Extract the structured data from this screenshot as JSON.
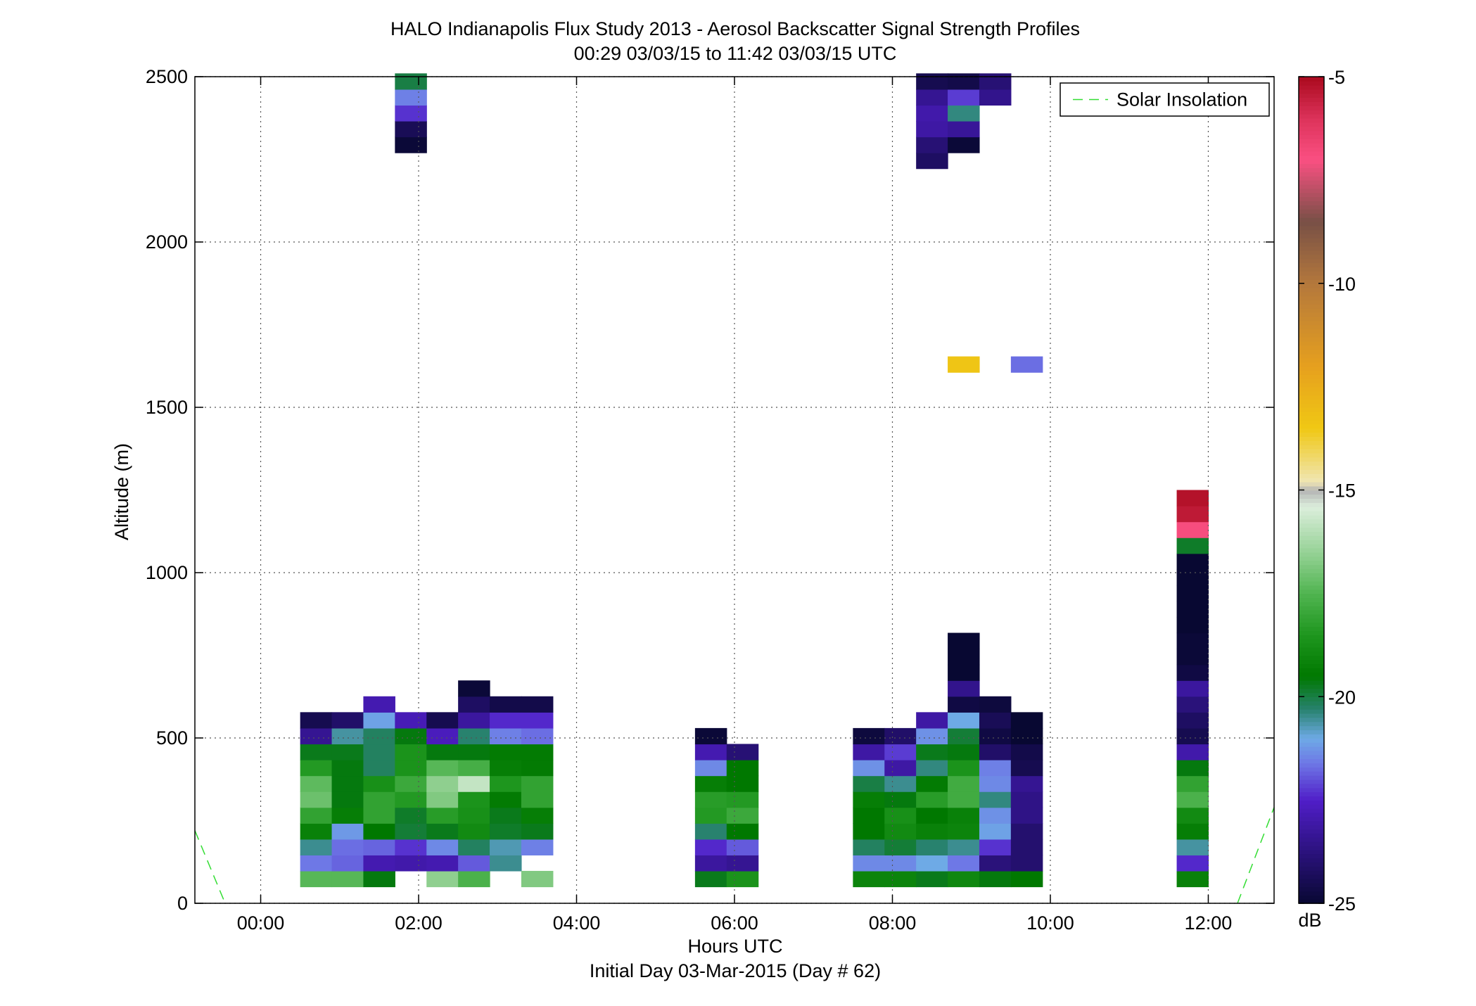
{
  "chart_data": {
    "type": "heatmap",
    "title": "HALO Indianapolis Flux Study 2013 - Aerosol Backscatter Signal Strength Profiles",
    "subtitle": "00:29 03/03/15 to 11:42 03/03/15  UTC",
    "xlabel": "Hours UTC",
    "xlabel2": "Initial Day 03-Mar-2015 (Day # 62)",
    "ylabel": "Altitude (m)",
    "xlim": [
      -0.8333,
      12.8333
    ],
    "ylim": [
      0,
      2500
    ],
    "x_ticks": [
      0,
      2,
      4,
      6,
      8,
      10,
      12
    ],
    "x_tick_labels": [
      "00:00",
      "02:00",
      "04:00",
      "06:00",
      "08:00",
      "10:00",
      "12:00"
    ],
    "y_ticks": [
      0,
      500,
      1000,
      1500,
      2000,
      2500
    ],
    "y_tick_labels": [
      "0",
      "500",
      "1000",
      "1500",
      "2000",
      "2500"
    ],
    "grid": true,
    "colorbar": {
      "label": "dB",
      "range": [
        -25,
        -5
      ],
      "ticks": [
        -25,
        -20,
        -15,
        -10,
        -5
      ],
      "tick_labels": [
        "-25",
        "-20",
        "-15",
        "-10",
        "-5"
      ]
    },
    "legend": {
      "position": "top-right",
      "entries": [
        "Solar Insolation"
      ],
      "color": "#33dd33"
    },
    "solar_insolation": [
      {
        "x": [
          -0.8333,
          -0.45
        ],
        "y": [
          220,
          0
        ]
      },
      {
        "x": [
          12.37,
          12.8333
        ],
        "y": [
          0,
          290
        ]
      }
    ],
    "bin_width_hours": 0.4,
    "bin_height_m": 48,
    "columns": [
      {
        "x": 0.5,
        "cells": [
          [
            50,
            -17.4
          ],
          [
            98,
            -21.6
          ],
          [
            146,
            -20.5
          ],
          [
            194,
            -19.2
          ],
          [
            242,
            -18.1
          ],
          [
            290,
            -17.1
          ],
          [
            338,
            -17.3
          ],
          [
            386,
            -18.4
          ],
          [
            434,
            -19.7
          ],
          [
            482,
            -23.4
          ],
          [
            530,
            -24.5
          ]
        ]
      },
      {
        "x": 0.9,
        "cells": [
          [
            50,
            -17.4
          ],
          [
            98,
            -21.8
          ],
          [
            146,
            -21.7
          ],
          [
            194,
            -21.2
          ],
          [
            242,
            -19.3
          ],
          [
            290,
            -19.6
          ],
          [
            338,
            -19.6
          ],
          [
            386,
            -19.6
          ],
          [
            434,
            -19.7
          ],
          [
            482,
            -20.6
          ],
          [
            530,
            -24.1
          ]
        ]
      },
      {
        "x": 1.3,
        "cells": [
          [
            50,
            -19.6
          ],
          [
            98,
            -22.9
          ],
          [
            146,
            -21.8
          ],
          [
            194,
            -19.5
          ],
          [
            242,
            -18.1
          ],
          [
            290,
            -18.1
          ],
          [
            338,
            -18.7
          ],
          [
            386,
            -20.2
          ],
          [
            434,
            -20.2
          ],
          [
            482,
            -20.2
          ],
          [
            530,
            -21.1
          ],
          [
            578,
            -22.9
          ]
        ]
      },
      {
        "x": 1.7,
        "cells": [
          [
            98,
            -23.0
          ],
          [
            146,
            -22.3
          ],
          [
            194,
            -19.9
          ],
          [
            242,
            -19.8
          ],
          [
            290,
            -18.4
          ],
          [
            338,
            -17.9
          ],
          [
            386,
            -18.6
          ],
          [
            434,
            -18.6
          ],
          [
            482,
            -19.6
          ],
          [
            530,
            -22.8
          ],
          [
            2270,
            -24.9
          ],
          [
            2318,
            -24.4
          ],
          [
            2366,
            -22.3
          ],
          [
            2414,
            -21.5
          ],
          [
            2462,
            -20.0
          ]
        ]
      },
      {
        "x": 2.1,
        "cells": [
          [
            50,
            -16.6
          ],
          [
            98,
            -22.9
          ],
          [
            146,
            -21.4
          ],
          [
            194,
            -19.7
          ],
          [
            242,
            -18.3
          ],
          [
            290,
            -16.8
          ],
          [
            338,
            -16.6
          ],
          [
            386,
            -17.4
          ],
          [
            434,
            -19.6
          ],
          [
            482,
            -22.7
          ],
          [
            530,
            -24.5
          ]
        ]
      },
      {
        "x": 2.5,
        "cells": [
          [
            50,
            -17.6
          ],
          [
            98,
            -21.9
          ],
          [
            146,
            -20.2
          ],
          [
            194,
            -18.9
          ],
          [
            242,
            -18.7
          ],
          [
            290,
            -18.6
          ],
          [
            338,
            -15.8
          ],
          [
            386,
            -17.7
          ],
          [
            434,
            -19.6
          ],
          [
            482,
            -20.3
          ],
          [
            530,
            -23.2
          ],
          [
            578,
            -24.2
          ],
          [
            626,
            -24.9
          ]
        ]
      },
      {
        "x": 2.9,
        "cells": [
          [
            98,
            -20.5
          ],
          [
            146,
            -20.7
          ],
          [
            194,
            -19.8
          ],
          [
            242,
            -19.7
          ],
          [
            290,
            -19.4
          ],
          [
            338,
            -18.5
          ],
          [
            386,
            -19.3
          ],
          [
            434,
            -19.4
          ],
          [
            482,
            -21.5
          ],
          [
            530,
            -22.4
          ],
          [
            578,
            -24.6
          ]
        ]
      },
      {
        "x": 3.3,
        "cells": [
          [
            50,
            -16.8
          ],
          [
            146,
            -21.5
          ],
          [
            194,
            -19.7
          ],
          [
            242,
            -19.3
          ],
          [
            290,
            -18.1
          ],
          [
            338,
            -18.1
          ],
          [
            386,
            -19.4
          ],
          [
            434,
            -19.4
          ],
          [
            482,
            -21.7
          ],
          [
            530,
            -22.4
          ],
          [
            578,
            -24.6
          ]
        ]
      },
      {
        "x": 5.5,
        "cells": [
          [
            50,
            -19.7
          ],
          [
            98,
            -23.2
          ],
          [
            146,
            -22.4
          ],
          [
            194,
            -20.3
          ],
          [
            242,
            -18.4
          ],
          [
            290,
            -18.3
          ],
          [
            338,
            -19.3
          ],
          [
            386,
            -21.4
          ],
          [
            434,
            -22.9
          ],
          [
            482,
            -24.9
          ]
        ]
      },
      {
        "x": 5.9,
        "cells": [
          [
            50,
            -18.6
          ],
          [
            98,
            -23.4
          ],
          [
            146,
            -21.9
          ],
          [
            194,
            -19.5
          ],
          [
            242,
            -17.9
          ],
          [
            290,
            -18.4
          ],
          [
            338,
            -19.5
          ],
          [
            386,
            -19.5
          ],
          [
            434,
            -23.9
          ]
        ]
      },
      {
        "x": 7.5,
        "cells": [
          [
            50,
            -19.1
          ],
          [
            98,
            -21.4
          ],
          [
            146,
            -20.2
          ],
          [
            194,
            -19.5
          ],
          [
            242,
            -19.5
          ],
          [
            290,
            -19.3
          ],
          [
            338,
            -20.0
          ],
          [
            386,
            -21.3
          ],
          [
            434,
            -23.1
          ],
          [
            482,
            -24.8
          ]
        ]
      },
      {
        "x": 7.9,
        "cells": [
          [
            50,
            -19.1
          ],
          [
            98,
            -21.4
          ],
          [
            146,
            -19.9
          ],
          [
            194,
            -18.9
          ],
          [
            242,
            -18.7
          ],
          [
            290,
            -19.6
          ],
          [
            338,
            -20.5
          ],
          [
            386,
            -23.1
          ],
          [
            434,
            -22.2
          ],
          [
            482,
            -24.1
          ]
        ]
      },
      {
        "x": 8.3,
        "cells": [
          [
            50,
            -19.7
          ],
          [
            98,
            -21.0
          ],
          [
            146,
            -20.3
          ],
          [
            194,
            -19.2
          ],
          [
            242,
            -19.5
          ],
          [
            290,
            -18.3
          ],
          [
            338,
            -19.4
          ],
          [
            386,
            -20.4
          ],
          [
            434,
            -19.7
          ],
          [
            482,
            -21.3
          ],
          [
            530,
            -23.1
          ],
          [
            2222,
            -24.2
          ],
          [
            2270,
            -23.9
          ],
          [
            2318,
            -23.1
          ],
          [
            2366,
            -23.0
          ],
          [
            2414,
            -23.4
          ],
          [
            2462,
            -24.5
          ]
        ]
      },
      {
        "x": 8.7,
        "cells": [
          [
            50,
            -19.0
          ],
          [
            98,
            -21.6
          ],
          [
            146,
            -20.5
          ],
          [
            194,
            -19.1
          ],
          [
            242,
            -19.2
          ],
          [
            290,
            -17.8
          ],
          [
            338,
            -17.8
          ],
          [
            386,
            -18.6
          ],
          [
            434,
            -19.6
          ],
          [
            482,
            -19.9
          ],
          [
            530,
            -21.0
          ],
          [
            578,
            -24.7
          ],
          [
            626,
            -23.5
          ],
          [
            674,
            -25.0
          ],
          [
            722,
            -25.0
          ],
          [
            770,
            -25.0
          ],
          [
            1606,
            -13.4
          ],
          [
            2270,
            -24.9
          ],
          [
            2318,
            -23.3
          ],
          [
            2366,
            -20.4
          ],
          [
            2414,
            -22.2
          ],
          [
            2462,
            -24.6
          ]
        ]
      },
      {
        "x": 9.1,
        "cells": [
          [
            50,
            -19.6
          ],
          [
            98,
            -23.8
          ],
          [
            146,
            -22.3
          ],
          [
            194,
            -21.1
          ],
          [
            242,
            -21.3
          ],
          [
            290,
            -20.4
          ],
          [
            338,
            -21.4
          ],
          [
            386,
            -21.5
          ],
          [
            434,
            -24.1
          ],
          [
            482,
            -24.7
          ],
          [
            530,
            -24.4
          ],
          [
            578,
            -24.8
          ],
          [
            2414,
            -23.5
          ],
          [
            2462,
            -23.9
          ]
        ]
      },
      {
        "x": 9.5,
        "cells": [
          [
            50,
            -19.5
          ],
          [
            98,
            -24.0
          ],
          [
            146,
            -24.0
          ],
          [
            194,
            -24.0
          ],
          [
            242,
            -23.6
          ],
          [
            290,
            -23.6
          ],
          [
            338,
            -23.4
          ],
          [
            386,
            -24.5
          ],
          [
            434,
            -24.6
          ],
          [
            482,
            -25.0
          ],
          [
            530,
            -25.0
          ],
          [
            1606,
            -21.7
          ]
        ]
      },
      {
        "x": 11.6,
        "cells": [
          [
            50,
            -19.2
          ],
          [
            98,
            -22.4
          ],
          [
            146,
            -20.6
          ],
          [
            194,
            -19.3
          ],
          [
            242,
            -18.9
          ],
          [
            290,
            -17.6
          ],
          [
            338,
            -18.1
          ],
          [
            386,
            -19.6
          ],
          [
            434,
            -23.0
          ],
          [
            482,
            -24.5
          ],
          [
            530,
            -24.2
          ],
          [
            578,
            -23.8
          ],
          [
            626,
            -23.2
          ],
          [
            674,
            -24.7
          ],
          [
            722,
            -24.9
          ],
          [
            770,
            -24.9
          ],
          [
            818,
            -25.0
          ],
          [
            866,
            -25.0
          ],
          [
            914,
            -25.0
          ],
          [
            962,
            -25.0
          ],
          [
            1010,
            -25.0
          ],
          [
            1058,
            -19.8
          ],
          [
            1106,
            -6.9
          ],
          [
            1154,
            -5.4
          ],
          [
            1202,
            -5.2
          ]
        ]
      }
    ]
  }
}
